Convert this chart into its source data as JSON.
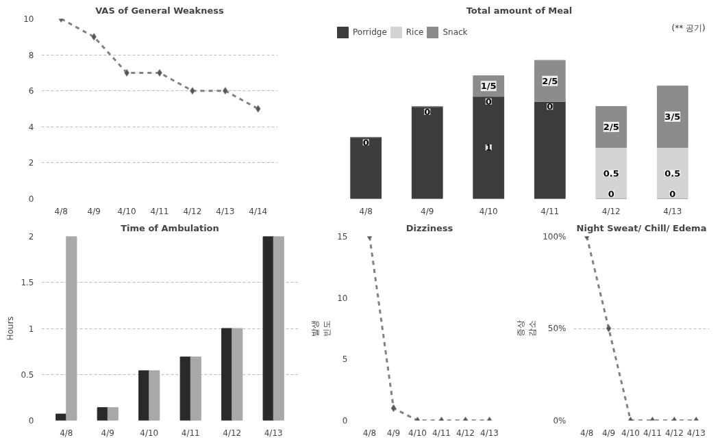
{
  "chart_data": [
    {
      "type": "line",
      "title": "VAS of General Weakness",
      "categories": [
        "4/8",
        "4/9",
        "4/10",
        "4/11",
        "4/12",
        "4/13",
        "4/14"
      ],
      "values": [
        10,
        9,
        7,
        7,
        6,
        6,
        5
      ],
      "ylim": [
        0,
        10
      ],
      "yticks": [
        0,
        2,
        4,
        6,
        8,
        10
      ],
      "grid": "y",
      "marker": "diamond",
      "line_style": "dashed",
      "color": "#808080"
    },
    {
      "type": "bar",
      "title": "Total amount of Meal",
      "stacked": true,
      "legend": "top",
      "tick_labels": "x",
      "categories": [
        "4/8",
        "4/9",
        "4/10",
        "4/11",
        "4/12",
        "4/13"
      ],
      "annotations": [
        "(** 공기)"
      ],
      "series": [
        {
          "name": "Porridge",
          "color": "#3c3c3c",
          "values": [
            0.6,
            0.9,
            1,
            0.95,
            0,
            0
          ],
          "value_labels": [
            null,
            null,
            "1",
            null,
            "0",
            "0"
          ]
        },
        {
          "name": "Rice",
          "color": "#d4d4d4",
          "values": [
            0,
            0,
            0,
            0,
            0.5,
            0.5
          ],
          "value_labels": [
            null,
            null,
            "0",
            "0",
            "0.5",
            "0.5"
          ]
        },
        {
          "name": "Snack",
          "color": "#8c8c8c",
          "values": [
            0,
            0,
            0.2,
            0.4,
            0.4,
            0.6
          ],
          "value_labels": [
            "0",
            "0",
            "1/5",
            "2/5",
            "2/5",
            "3/5"
          ]
        }
      ]
    },
    {
      "type": "bar",
      "title": "Time of Ambulation",
      "ylabel": "Hours",
      "categories": [
        "4/8",
        "4/9",
        "4/10",
        "4/11",
        "4/12",
        "4/13"
      ],
      "ylim": [
        0,
        2
      ],
      "yticks": [
        0,
        0.5,
        1,
        1.5,
        2
      ],
      "grid": "y",
      "series": [
        {
          "color": "#2a2a2a",
          "values": [
            0.07,
            0.14,
            0.54,
            0.69,
            1,
            2
          ]
        },
        {
          "color": "#a8a8a8",
          "values": [
            2,
            0.14,
            0.54,
            0.69,
            1,
            2
          ]
        }
      ]
    },
    {
      "type": "line",
      "title": "Dizziness",
      "ylabel": "발생\n빈도",
      "categories": [
        "4/8",
        "4/9",
        "4/10",
        "4/11",
        "4/12",
        "4/13"
      ],
      "values": [
        15,
        1,
        0,
        0,
        0,
        0
      ],
      "ylim": [
        0,
        15
      ],
      "yticks": [
        0,
        5,
        10,
        15
      ],
      "grid": false,
      "marker": "diamond",
      "line_style": "dashed",
      "color": "#808080"
    },
    {
      "type": "line",
      "title": "Night Sweat/ Chill/ Edema",
      "ylabel": "증상\n감소",
      "categories": [
        "4/8",
        "4/9",
        "4/10",
        "4/11",
        "4/12",
        "4/13"
      ],
      "values": [
        100,
        50,
        0,
        0,
        0,
        0
      ],
      "ylim": [
        0,
        100
      ],
      "yticks": [
        {
          "value": 0,
          "label": "0%"
        },
        {
          "value": 50,
          "label": "50%"
        },
        {
          "value": 100,
          "label": "100%"
        }
      ],
      "grid": "y",
      "marker": "diamond",
      "line_style": "dashed",
      "color": "#808080"
    }
  ]
}
